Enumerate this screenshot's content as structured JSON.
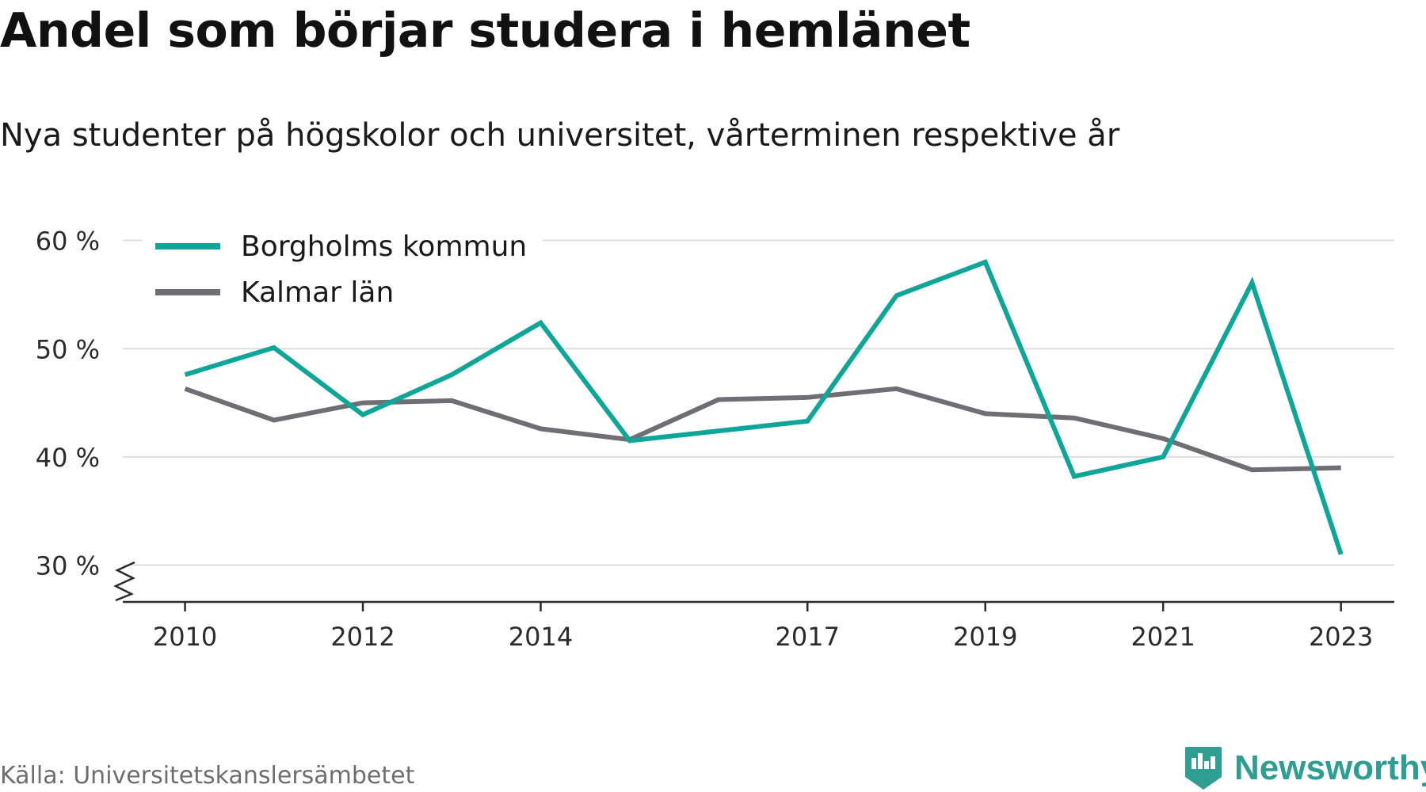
{
  "header": {
    "title": "Andel som börjar studera i hemlänet",
    "subtitle": "Nya studenter på högskolor och universitet, vårterminen respektive år"
  },
  "footer": {
    "source": "Källa: Universitetskanslersämbetet",
    "brand": "Newsworthy",
    "brand_color": "#2e9e93"
  },
  "chart_data": {
    "type": "line",
    "title": "Andel som börjar studera i hemlänet",
    "subtitle": "Nya studenter på högskolor och universitet, vårterminen respektive år",
    "xlabel": "",
    "ylabel": "",
    "x": [
      2010,
      2011,
      2012,
      2013,
      2014,
      2015,
      2016,
      2017,
      2018,
      2019,
      2020,
      2021,
      2022,
      2023
    ],
    "x_ticks": [
      "2010",
      "2012",
      "2014",
      "2017",
      "2019",
      "2021",
      "2023"
    ],
    "y_ticks": [
      "30 %",
      "40 %",
      "50 %",
      "60 %"
    ],
    "y_tick_values": [
      30,
      40,
      50,
      60
    ],
    "ylim": [
      26.6,
      61
    ],
    "xlim": [
      2009.3,
      2023.6
    ],
    "axis_break": true,
    "grid": "horizontal",
    "legend_position": "top-left",
    "series": [
      {
        "name": "Borgholms kommun",
        "color": "#0ea699",
        "values": [
          47.6,
          50.1,
          43.9,
          47.6,
          52.4,
          41.5,
          42.4,
          43.3,
          54.9,
          58.0,
          38.2,
          40.0,
          56.1,
          31.0
        ]
      },
      {
        "name": "Kalmar län",
        "color": "#6f6e75",
        "values": [
          46.3,
          43.4,
          45.0,
          45.2,
          42.6,
          41.6,
          45.3,
          45.5,
          46.3,
          44.0,
          43.6,
          41.7,
          38.8,
          39.0
        ]
      }
    ]
  }
}
